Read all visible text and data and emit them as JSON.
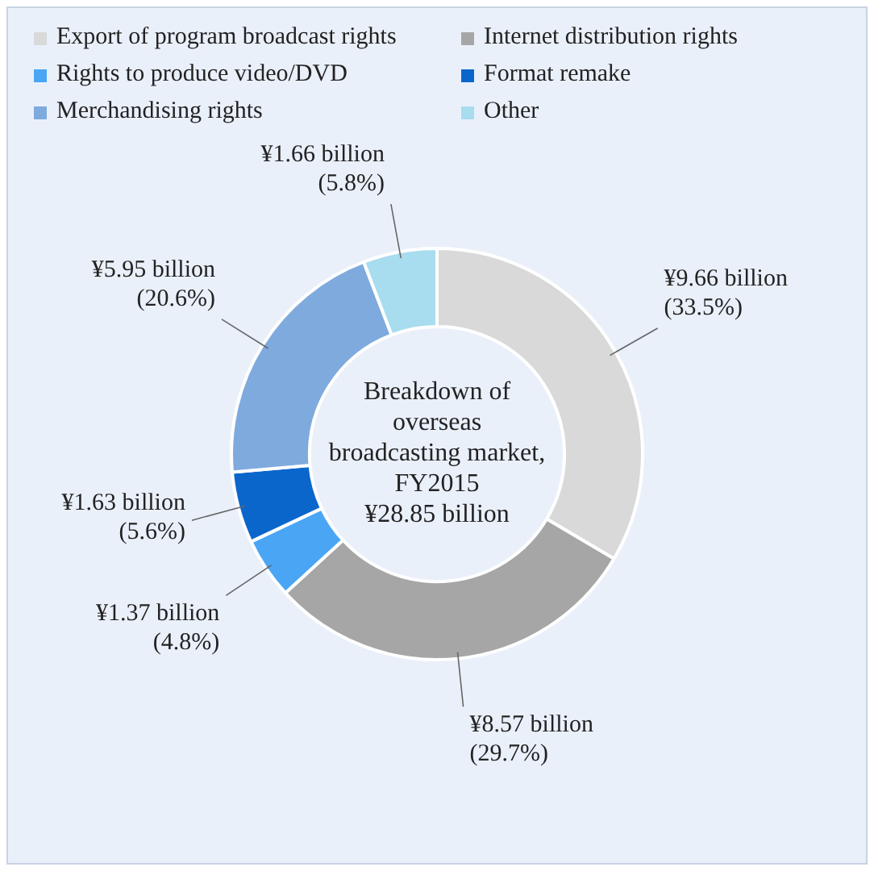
{
  "chart_data": {
    "type": "donut",
    "title": "Breakdown of overseas broadcasting market, FY2015",
    "subtitle": "¥28.85 billion",
    "categories": [
      "Export of program broadcast rights",
      "Internet distribution rights",
      "Rights to produce video/DVD",
      "Format remake",
      "Merchandising rights",
      "Other"
    ],
    "values": [
      33.5,
      29.7,
      4.8,
      5.6,
      20.6,
      5.8
    ],
    "colors": [
      "#d9d9d9",
      "#a6a6a6",
      "#4aa5f5",
      "#0b66cc",
      "#7faade",
      "#a8dcef"
    ],
    "value_labels": [
      "¥9.66 billion (33.5%)",
      "¥8.57 billion (29.7%)",
      "¥1.37 billion (4.8%)",
      "¥1.63 billion (5.6%)",
      "¥5.95 billion (20.6%)",
      "¥1.66 billion (5.8%)"
    ],
    "legend": "top"
  }
}
